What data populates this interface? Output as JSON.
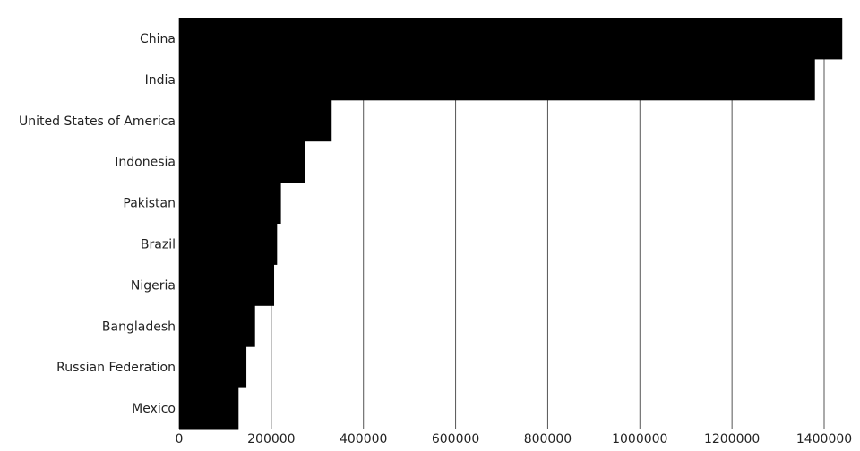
{
  "chart_data": {
    "type": "bar",
    "orientation": "horizontal",
    "categories": [
      "China",
      "India",
      "United States of America",
      "Indonesia",
      "Pakistan",
      "Brazil",
      "Nigeria",
      "Bangladesh",
      "Russian Federation",
      "Mexico"
    ],
    "values": [
      1439323,
      1380004,
      331003,
      273524,
      220892,
      212559,
      206140,
      164689,
      145934,
      128933
    ],
    "xlim": [
      0,
      1400000
    ],
    "xticks": [
      "0",
      "200000",
      "400000",
      "600000",
      "800000",
      "1000000",
      "1200000",
      "1400000"
    ],
    "grid": true,
    "bar_color": "#000000",
    "grid_color": "#555555"
  }
}
